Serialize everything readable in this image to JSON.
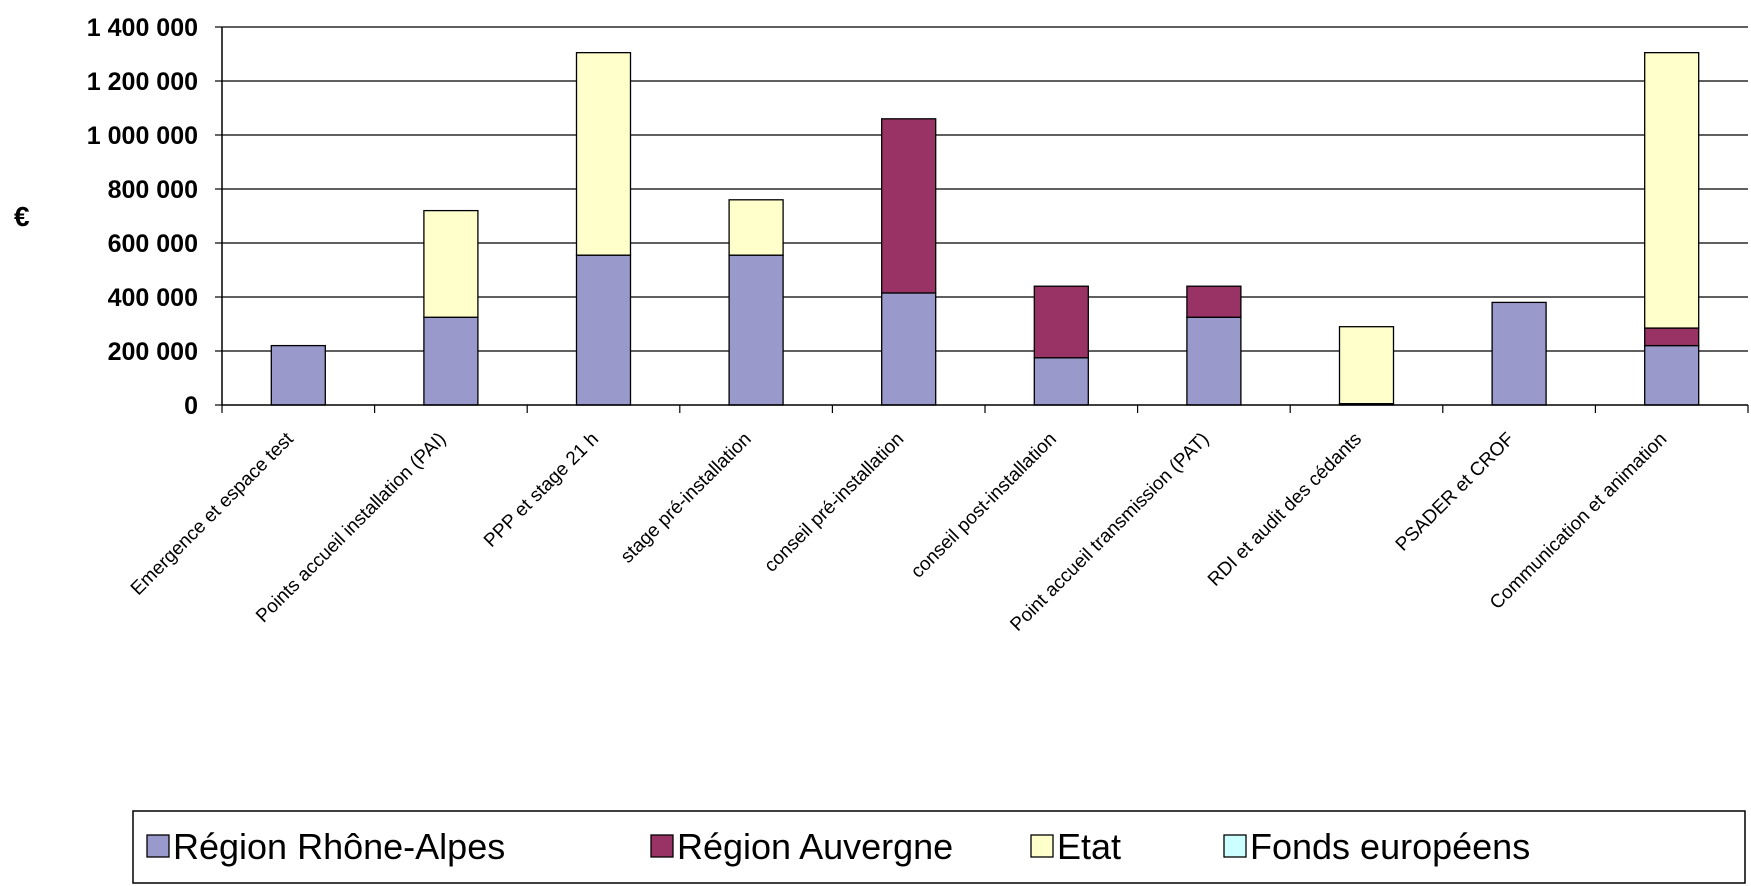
{
  "chart_data": {
    "type": "bar",
    "stacked": true,
    "ylabel": "€",
    "xlabel": "",
    "ylim": [
      0,
      1400000
    ],
    "y_ticks": [
      0,
      200000,
      400000,
      600000,
      800000,
      1000000,
      1200000,
      1400000
    ],
    "y_tick_labels": [
      "0",
      "200 000",
      "400 000",
      "600 000",
      "800 000",
      "1 000 000",
      "1 200 000",
      "1 400 000"
    ],
    "grid": true,
    "legend_position": "bottom",
    "categories": [
      "Emergence et espace test",
      "Points accueil installation (PAI)",
      "PPP et stage 21 h",
      "stage pré-installation",
      "conseil pré-installation",
      "conseil post-installation",
      "Point accueil transmission (PAT)",
      "RDI et audit des cédants",
      "PSADER et CROF",
      "Communication et animation"
    ],
    "series": [
      {
        "name": "Région Rhône-Alpes",
        "color": "#9999cc",
        "values": [
          220000,
          325000,
          555000,
          555000,
          415000,
          175000,
          325000,
          5000,
          380000,
          220000
        ]
      },
      {
        "name": "Région Auvergne",
        "color": "#993366",
        "values": [
          0,
          0,
          0,
          0,
          645000,
          265000,
          115000,
          0,
          0,
          65000
        ]
      },
      {
        "name": "Etat",
        "color": "#ffffcc",
        "values": [
          0,
          395000,
          750000,
          205000,
          0,
          0,
          0,
          285000,
          0,
          1020000
        ]
      },
      {
        "name": "Fonds européens",
        "color": "#ccffff",
        "values": [
          0,
          0,
          0,
          0,
          0,
          0,
          0,
          0,
          0,
          0
        ]
      }
    ]
  }
}
